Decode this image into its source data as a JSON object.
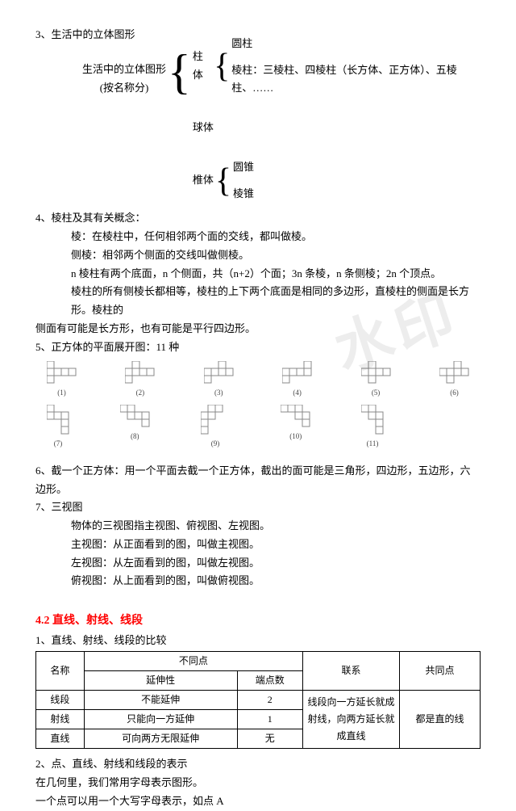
{
  "sec3": {
    "title": "3、生活中的立体图形",
    "root": "生活中的立体图形",
    "root_sub": "(按名称分)",
    "branches": {
      "zhu": {
        "label": "柱体",
        "a": "圆柱",
        "b": "棱柱：三棱柱、四棱柱（长方体、正方体）、五棱柱、……"
      },
      "qiu": {
        "label": "球体"
      },
      "zhui": {
        "label": "椎体",
        "a": "圆锥",
        "b": "棱锥"
      }
    }
  },
  "sec4": {
    "title": "4、棱柱及其有关概念：",
    "l1": "棱：在棱柱中，任何相邻两个面的交线，都叫做棱。",
    "l2": "侧棱：相邻两个侧面的交线叫做侧棱。",
    "l3": "n 棱柱有两个底面，n 个侧面，共（n+2）个面；3n 条棱，n 条侧棱；2n 个顶点。",
    "l4": "棱柱的所有侧棱长都相等，棱柱的上下两个底面是相同的多边形，直棱柱的侧面是长方形。棱柱的",
    "l5": "侧面有可能是长方形，也有可能是平行四边形。"
  },
  "sec5": {
    "title": "5、正方体的平面展开图：11 种"
  },
  "net_labels": [
    "(1)",
    "(2)",
    "(3)",
    "(4)",
    "(5)",
    "(6)",
    "(7)",
    "(8)",
    "(9)",
    "(10)",
    "(11)"
  ],
  "net_style": {
    "cell": 9,
    "stroke": "#888888",
    "stroke_width": 1
  },
  "sec6": {
    "title": "6、截一个正方体：用一个平面去截一个正方体，截出的面可能是三角形，四边形，五边形，六边形。"
  },
  "sec7": {
    "title": "7、三视图",
    "l1": "物体的三视图指主视图、俯视图、左视图。",
    "l2": "主视图：从正面看到的图，叫做主视图。",
    "l3": "左视图：从左面看到的图，叫做左视图。",
    "l4": "俯视图：从上面看到的图，叫做俯视图。"
  },
  "sec42": {
    "heading": "4.2 直线、射线、线段",
    "t1": "1、直线、射线、线段的比较",
    "table": {
      "h_name": "名称",
      "h_diff": "不同点",
      "h_ext": "延伸性",
      "h_end": "端点数",
      "h_rel": "联系",
      "h_com": "共同点",
      "r1": {
        "name": "线段",
        "ext": "不能延伸",
        "end": "2"
      },
      "r2": {
        "name": "射线",
        "ext": "只能向一方延伸",
        "end": "1"
      },
      "r3": {
        "name": "直线",
        "ext": "可向两方无限延伸",
        "end": "无"
      },
      "rel": "线段向一方延长就成射线，向两方延长就成直线",
      "com": "都是直的线"
    },
    "t2": "2、点、直线、射线和线段的表示",
    "t3": "在几何里，我们常用字母表示图形。",
    "t4": "一个点可以用一个大写字母表示，如点 A"
  },
  "watermark": "水印"
}
